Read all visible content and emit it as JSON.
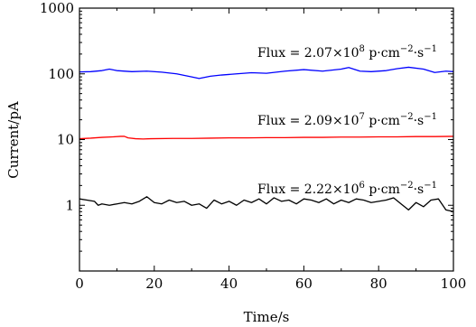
{
  "chart_data": {
    "type": "line",
    "xlabel": "Time/s",
    "ylabel": "Current/pA",
    "xlim": [
      0,
      100
    ],
    "ylim": [
      0.1,
      1000
    ],
    "yscale": "log",
    "x_ticks": [
      0,
      20,
      40,
      60,
      80,
      100
    ],
    "x_tick_labels": [
      "0",
      "20",
      "40",
      "60",
      "80",
      "100"
    ],
    "y_ticks": [
      1,
      10,
      100,
      1000
    ],
    "y_tick_labels": [
      "1",
      "10",
      "100",
      "1000"
    ],
    "grid": false,
    "legend": "none",
    "series": [
      {
        "color": "#0000ff",
        "x": [
          0,
          3,
          6,
          8,
          10,
          14,
          18,
          22,
          26,
          30,
          32,
          35,
          38,
          42,
          46,
          50,
          55,
          60,
          65,
          70,
          72,
          75,
          78,
          82,
          85,
          88,
          92,
          95,
          98,
          100
        ],
        "y": [
          107,
          108,
          112,
          118,
          112,
          108,
          110,
          106,
          100,
          90,
          85,
          92,
          96,
          100,
          104,
          102,
          110,
          116,
          110,
          118,
          125,
          110,
          108,
          112,
          120,
          126,
          118,
          105,
          110,
          108
        ]
      },
      {
        "color": "#ff0000",
        "x": [
          0,
          3,
          6,
          9,
          11,
          12,
          13,
          15,
          17,
          19,
          25,
          30,
          35,
          40,
          45,
          50,
          55,
          60,
          65,
          70,
          75,
          80,
          85,
          90,
          95,
          100
        ],
        "y": [
          10.3,
          10.5,
          10.8,
          11.0,
          11.2,
          11.2,
          10.6,
          10.3,
          10.2,
          10.3,
          10.4,
          10.4,
          10.5,
          10.6,
          10.6,
          10.7,
          10.7,
          10.8,
          10.8,
          10.9,
          10.9,
          11.0,
          11.0,
          11.1,
          11.1,
          11.2
        ]
      },
      {
        "color": "#000000",
        "x": [
          0,
          2,
          4,
          5,
          6,
          8,
          10,
          12,
          14,
          16,
          18,
          20,
          22,
          24,
          26,
          28,
          30,
          32,
          34,
          36,
          38,
          40,
          42,
          44,
          46,
          48,
          50,
          52,
          54,
          56,
          58,
          60,
          62,
          64,
          66,
          68,
          70,
          72,
          74,
          76,
          78,
          80,
          82,
          84,
          86,
          88,
          90,
          92,
          94,
          96,
          98,
          100
        ],
        "y": [
          1.25,
          1.2,
          1.15,
          1.0,
          1.05,
          1.0,
          1.05,
          1.1,
          1.05,
          1.15,
          1.35,
          1.1,
          1.05,
          1.2,
          1.1,
          1.15,
          1.0,
          1.05,
          0.9,
          1.2,
          1.05,
          1.15,
          1.0,
          1.2,
          1.1,
          1.25,
          1.05,
          1.3,
          1.15,
          1.2,
          1.05,
          1.25,
          1.2,
          1.1,
          1.25,
          1.05,
          1.2,
          1.1,
          1.25,
          1.2,
          1.1,
          1.15,
          1.2,
          1.3,
          1.05,
          0.85,
          1.1,
          0.95,
          1.2,
          1.25,
          0.85,
          0.8
        ]
      }
    ],
    "annotations": [
      {
        "base": "Flux = 2.07×10",
        "exp": "8",
        "unit": " p·cm",
        "unit_exp": "−2",
        "tail": "·s",
        "tail_exp": "−1"
      },
      {
        "base": "Flux = 2.09×10",
        "exp": "7",
        "unit": " p·cm",
        "unit_exp": "−2",
        "tail": "·s",
        "tail_exp": "−1"
      },
      {
        "base": "Flux = 2.22×10",
        "exp": "6",
        "unit": " p·cm",
        "unit_exp": "−2",
        "tail": "·s",
        "tail_exp": "−1"
      }
    ]
  }
}
